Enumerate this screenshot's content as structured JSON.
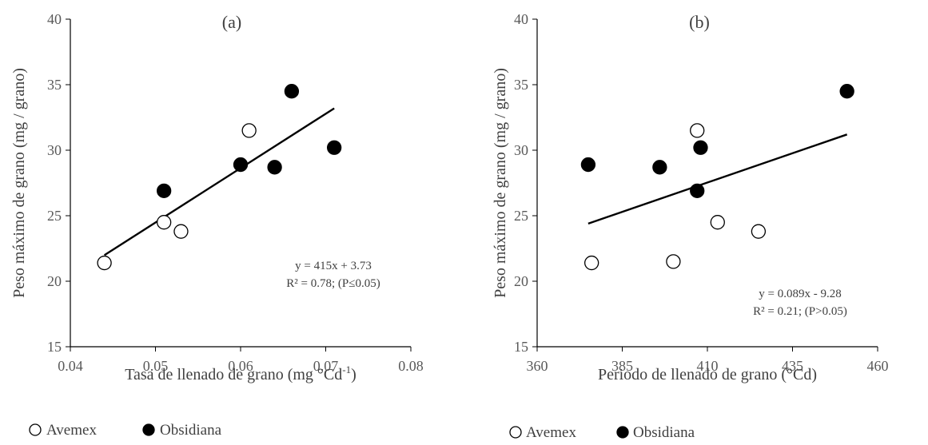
{
  "chart_data": [
    {
      "type": "scatter",
      "panel": "(a)",
      "xlabel": "Tasa de llenado de grano (mg °Cd",
      "xlabel_sup": "-1",
      "xlabel_end": ")",
      "ylabel": "Peso máximo de grano (mg / grano)",
      "xlim": [
        0.04,
        0.08
      ],
      "ylim": [
        15,
        40
      ],
      "xticks": [
        0.04,
        0.05,
        0.06,
        0.07,
        0.08
      ],
      "xtick_labels": [
        "0.04",
        "0.05",
        "0.06",
        "0.07",
        "0.08"
      ],
      "yticks": [
        15,
        20,
        25,
        30,
        35,
        40
      ],
      "ytick_labels": [
        "15",
        "20",
        "25",
        "30",
        "35",
        "40"
      ],
      "grid": false,
      "series": [
        {
          "name": "Avemex",
          "marker": "open-circle",
          "x": [
            0.044,
            0.051,
            0.053,
            0.061
          ],
          "y": [
            21.4,
            24.5,
            23.8,
            31.5
          ]
        },
        {
          "name": "Obsidiana",
          "marker": "filled-circle",
          "x": [
            0.051,
            0.06,
            0.064,
            0.066,
            0.071
          ],
          "y": [
            26.9,
            28.9,
            28.7,
            34.5,
            30.2
          ]
        }
      ],
      "trendline": {
        "slope": 415,
        "intercept": 3.73,
        "x_range": [
          0.044,
          0.071
        ]
      },
      "annotation": [
        "y  = 415x + 3.73",
        "R² = 0.78; (P≤0.05)"
      ],
      "legend": {
        "placement": "bottom",
        "entries": [
          "Avemex",
          "Obsidiana"
        ]
      }
    },
    {
      "type": "scatter",
      "panel": "(b)",
      "xlabel": "Periodo de llenado de grano (°Cd)",
      "ylabel": "Peso máximo de grano (mg / grano)",
      "xlim": [
        360,
        460
      ],
      "ylim": [
        15,
        40
      ],
      "xticks": [
        360,
        385,
        410,
        435,
        460
      ],
      "xtick_labels": [
        "360",
        "385",
        "410",
        "435",
        "460"
      ],
      "yticks": [
        15,
        20,
        25,
        30,
        35,
        40
      ],
      "ytick_labels": [
        "15",
        "20",
        "25",
        "30",
        "35",
        "40"
      ],
      "grid": false,
      "series": [
        {
          "name": "Avemex",
          "marker": "open-circle",
          "x": [
            376,
            400,
            407,
            413,
            425
          ],
          "y": [
            21.4,
            21.5,
            31.5,
            24.5,
            23.8
          ]
        },
        {
          "name": "Obsidiana",
          "marker": "filled-circle",
          "x": [
            375,
            396,
            407,
            408,
            451
          ],
          "y": [
            28.9,
            28.7,
            26.9,
            30.2,
            34.5
          ]
        }
      ],
      "trendline": {
        "slope": 0.089,
        "intercept": -9.28,
        "line_endpoints": [
          [
            375,
            24.4
          ],
          [
            451,
            31.2
          ]
        ]
      },
      "annotation": [
        "y = 0.089x - 9.28",
        "R² = 0.21; (P>0.05)"
      ],
      "legend": {
        "placement": "bottom",
        "entries": [
          "Avemex",
          "Obsidiana"
        ]
      }
    }
  ]
}
